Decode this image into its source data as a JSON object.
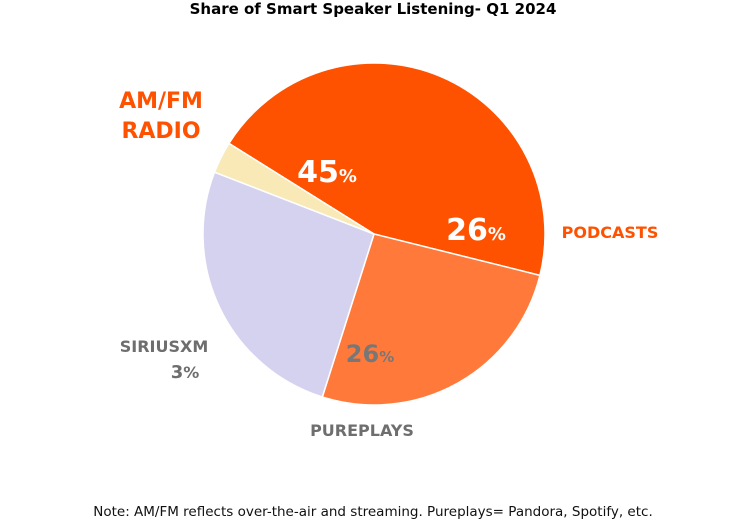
{
  "chart_data": {
    "type": "pie",
    "title": "Share of Smart Speaker Listening- Q1 2024",
    "slices": [
      {
        "key": "amfm",
        "label_lines": [
          "AM/FM",
          "RADIO"
        ],
        "value": 45,
        "pct_number": "45",
        "pct_symbol": "%",
        "color": "#FF5200",
        "label_color": "#FF5200",
        "pct_color": "#FFFFFF"
      },
      {
        "key": "podcasts",
        "label_lines": [
          "PODCASTS"
        ],
        "value": 26,
        "pct_number": "26",
        "pct_symbol": "%",
        "color": "#FF7A3A",
        "label_color": "#FF5200",
        "pct_color": "#FFFFFF"
      },
      {
        "key": "pureplays",
        "label_lines": [
          "PUREPLAYS"
        ],
        "value": 26,
        "pct_number": "26",
        "pct_symbol": "%",
        "color": "#D4D2EE",
        "label_color": "#6E6E6E",
        "pct_color": "#777777"
      },
      {
        "key": "siriusxm",
        "label_lines": [
          "SIRIUSXM"
        ],
        "value": 3,
        "pct_number": "3",
        "pct_symbol": "%",
        "color": "#F8E9B6",
        "label_color": "#6E6E6E",
        "pct_color": "#6E6E6E"
      }
    ],
    "note": "Note: AM/FM reflects over-the-air and streaming. Pureplays= Pandora, Spotify, etc."
  }
}
